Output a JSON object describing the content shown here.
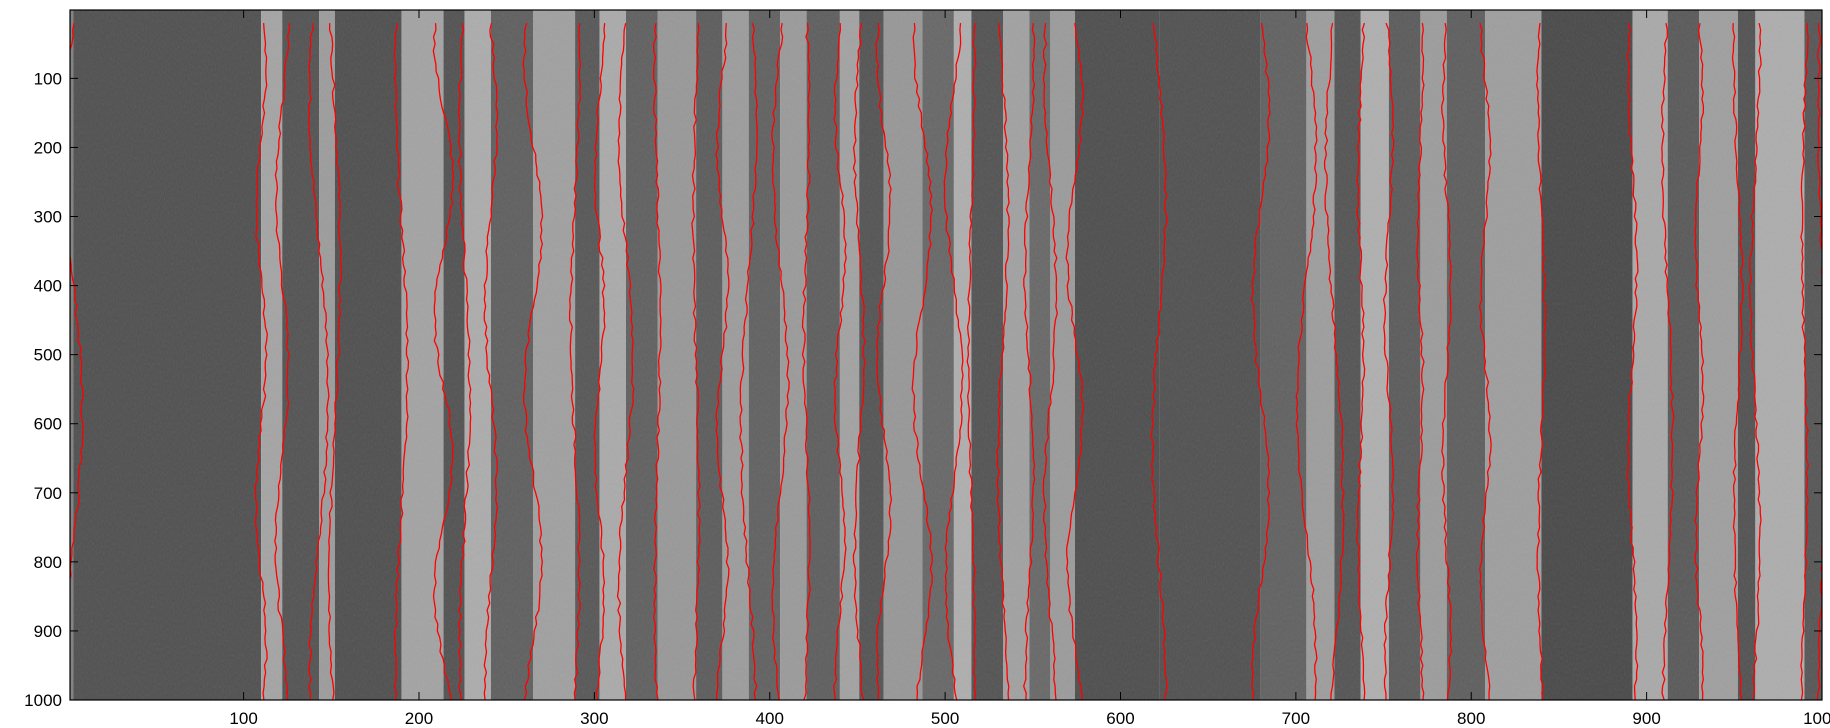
{
  "chart_data": {
    "type": "heatmap",
    "title": "",
    "xlabel": "",
    "ylabel": "",
    "xlim": [
      1,
      1000
    ],
    "ylim": [
      1,
      1000
    ],
    "y_reversed": true,
    "grid": false,
    "x_ticks": [
      100,
      200,
      300,
      400,
      500,
      600,
      700,
      800,
      900,
      1000
    ],
    "y_ticks": [
      100,
      200,
      300,
      400,
      500,
      600,
      700,
      800,
      900,
      1000
    ],
    "image_description_colormap": "grayscale",
    "line_color": "#ff0000",
    "band_boundaries_x": [
      3,
      110,
      122,
      143,
      152,
      190,
      214,
      226,
      241,
      265,
      289,
      303,
      318,
      336,
      358,
      373,
      388,
      406,
      421,
      440,
      451,
      465,
      487,
      505,
      515,
      533,
      548,
      560,
      574,
      622,
      680,
      706,
      722,
      737,
      753,
      771,
      786,
      808,
      840,
      892,
      912,
      930,
      952,
      962,
      990,
      1000
    ],
    "band_boundaries_y": [
      20,
      1000
    ]
  }
}
